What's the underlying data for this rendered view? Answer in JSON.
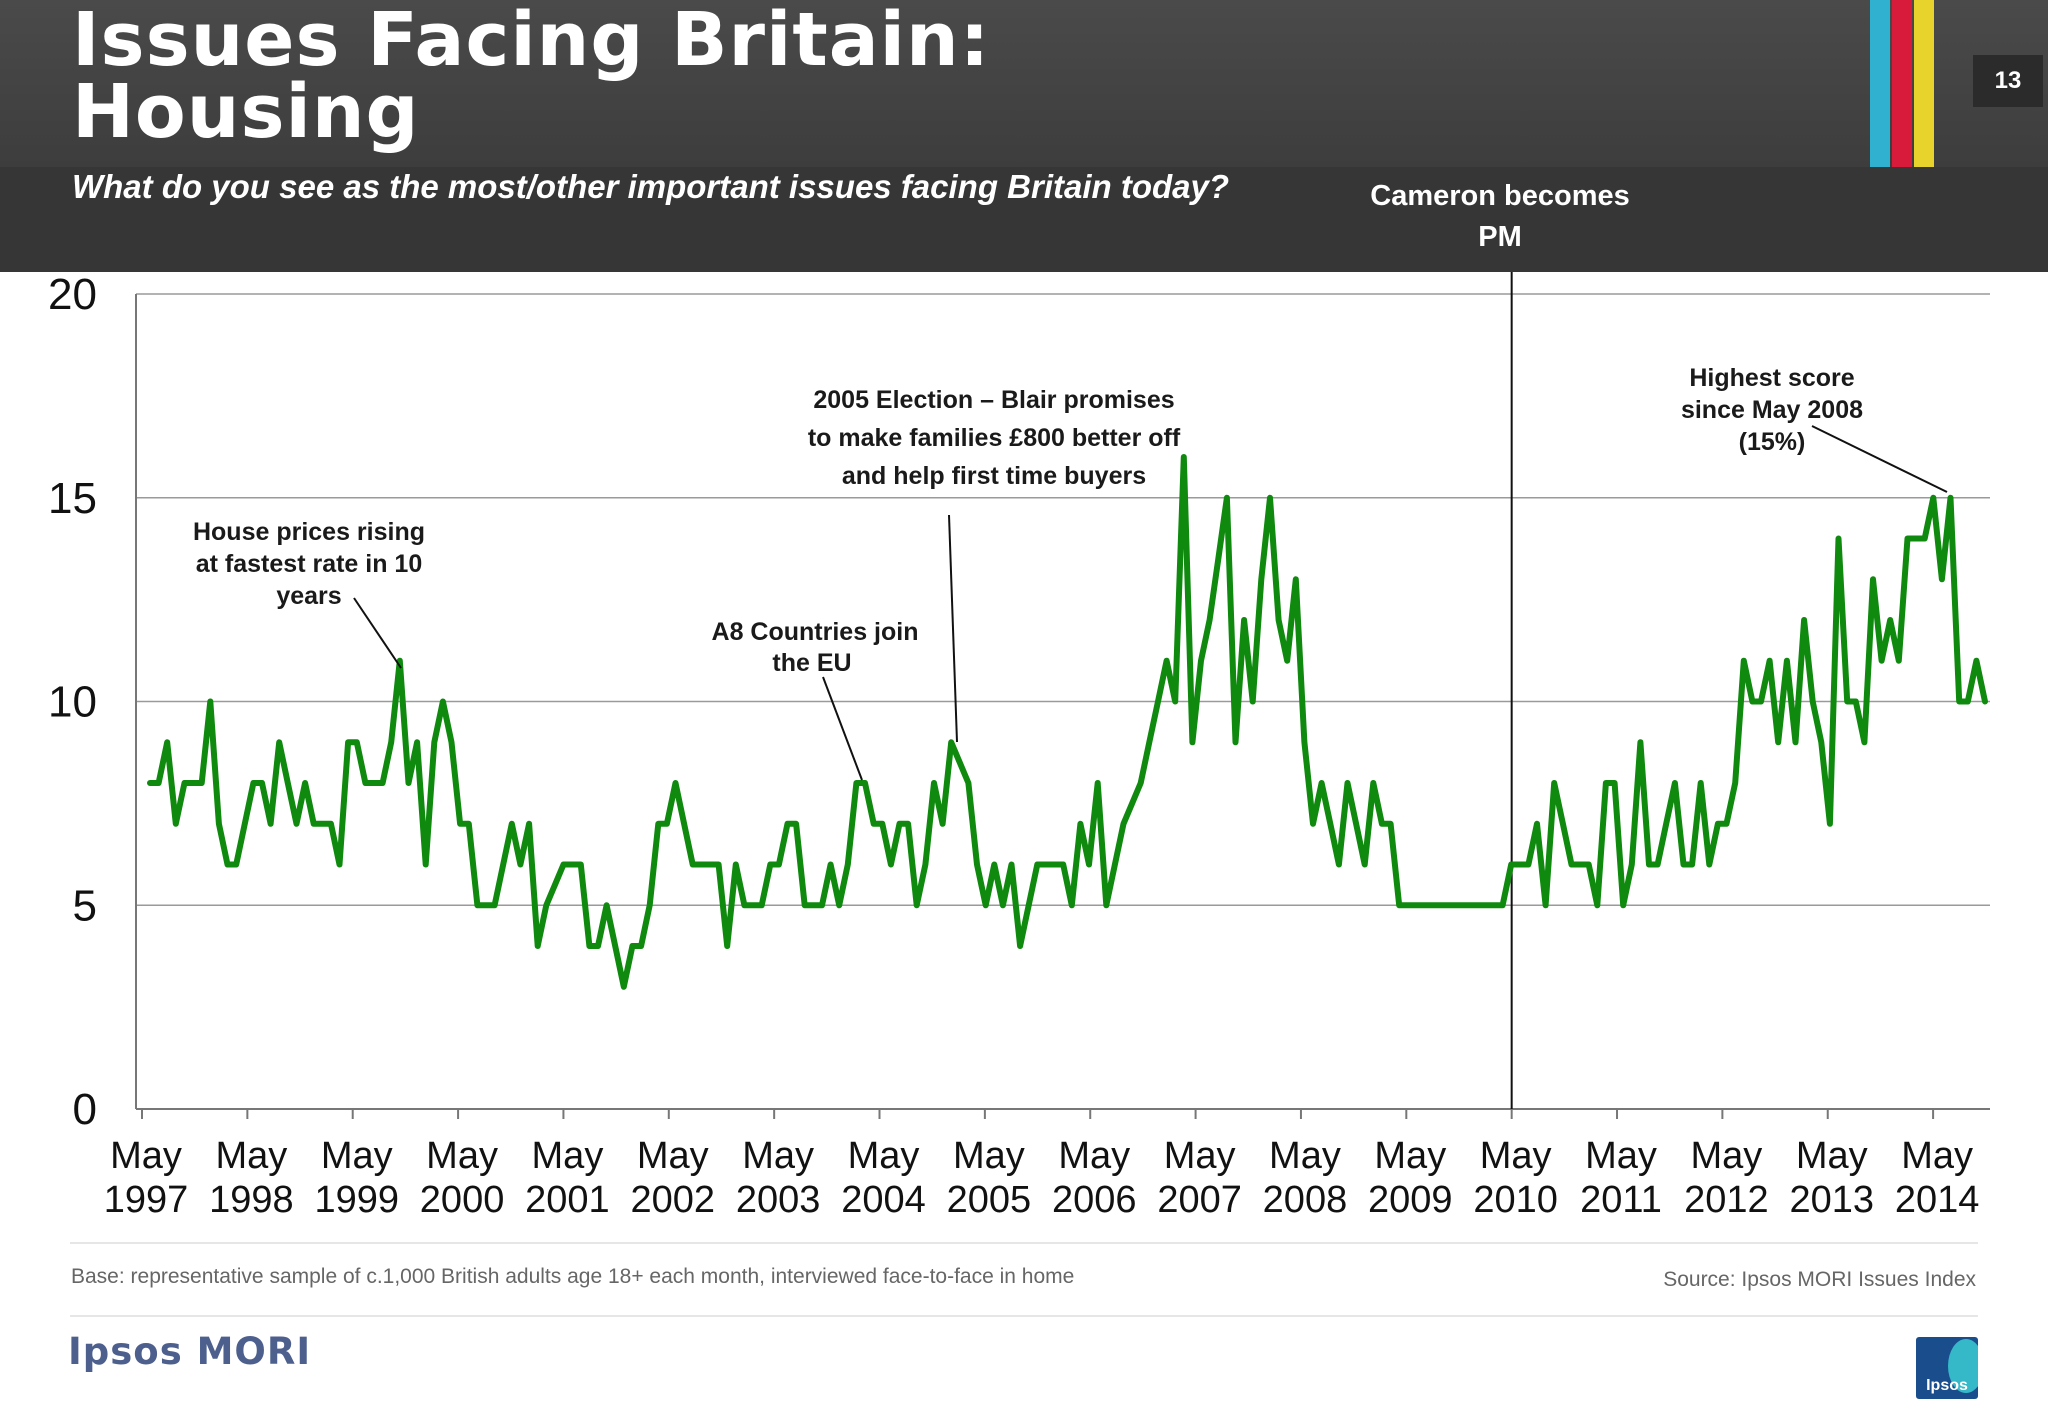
{
  "header": {
    "title_line1": "Issues Facing Britain:",
    "title_line2": "Housing",
    "subtitle": "What do you see as the most/other important issues facing Britain today?",
    "page_number": "13",
    "stripe_colors": [
      "#2fb1cf",
      "#d81b3a",
      "#e8d22c"
    ]
  },
  "annotations": {
    "cameron": [
      "Cameron becomes",
      "PM"
    ],
    "house_prices": [
      "House prices rising",
      "at fastest rate in 10",
      "years"
    ],
    "a8": [
      "A8 Countries join",
      "the EU"
    ],
    "election": [
      "2005 Election – Blair promises",
      "to make families £800 better off",
      "and help first time buyers"
    ],
    "highest": [
      "Highest score",
      "since May 2008",
      "(15%)"
    ]
  },
  "chart_data": {
    "type": "line",
    "title": "",
    "xlabel": "",
    "ylabel": "",
    "ylim": [
      0,
      20
    ],
    "yticks": [
      0,
      5,
      10,
      15,
      20
    ],
    "grid": true,
    "line_color": "#0f8a0f",
    "x_start": "1997-05",
    "x_end": "2014-10",
    "x_tick_labels": [
      [
        "May",
        "1997"
      ],
      [
        "May",
        "1998"
      ],
      [
        "May",
        "1999"
      ],
      [
        "May",
        "2000"
      ],
      [
        "May",
        "2001"
      ],
      [
        "May",
        "2002"
      ],
      [
        "May",
        "2003"
      ],
      [
        "May",
        "2004"
      ],
      [
        "May",
        "2005"
      ],
      [
        "May",
        "2006"
      ],
      [
        "May",
        "2007"
      ],
      [
        "May",
        "2008"
      ],
      [
        "May",
        "2009"
      ],
      [
        "May",
        "2010"
      ],
      [
        "May",
        "2011"
      ],
      [
        "May",
        "2012"
      ],
      [
        "May",
        "2013"
      ],
      [
        "May",
        "2014"
      ]
    ],
    "events": [
      {
        "label": "Cameron becomes PM",
        "x": "2010-05"
      }
    ],
    "series": [
      {
        "values": [
          8,
          8,
          9,
          7,
          8,
          8,
          8,
          10,
          7,
          6,
          6,
          7,
          8,
          8,
          7,
          9,
          8,
          7,
          8,
          7,
          7,
          7,
          6,
          9,
          9,
          8,
          8,
          8,
          9,
          11,
          8,
          9,
          6,
          9,
          10,
          9,
          7,
          7,
          5,
          5,
          5,
          6,
          7,
          6,
          7,
          4,
          5,
          5.5,
          6,
          6,
          6,
          4,
          4,
          5,
          4,
          3,
          4,
          4,
          5,
          7,
          7,
          8,
          7,
          6,
          6,
          6,
          6,
          4,
          6,
          5,
          5,
          5,
          6,
          6,
          7,
          7,
          5,
          5,
          5,
          6,
          5,
          6,
          8,
          8,
          7,
          7,
          6,
          7,
          7,
          5,
          6,
          8,
          7,
          9,
          8.5,
          8,
          6,
          5,
          6,
          5,
          6,
          4,
          5,
          6,
          6,
          6,
          6,
          5,
          7,
          6,
          8,
          5,
          6,
          7,
          7.5,
          8,
          9,
          10,
          11,
          10,
          16,
          9,
          11,
          12,
          13.5,
          15,
          9,
          12,
          10,
          13,
          15,
          12,
          11,
          13,
          9,
          7,
          8,
          7,
          6,
          8,
          7,
          6,
          8,
          7,
          7,
          5,
          5,
          5,
          5,
          5,
          5,
          5,
          5,
          5,
          5,
          5,
          5,
          5,
          6,
          6,
          6,
          7,
          5,
          8,
          7,
          6,
          6,
          6,
          5,
          8,
          8,
          5,
          6,
          9,
          6,
          6,
          7,
          8,
          6,
          6,
          8,
          6,
          7,
          7,
          8,
          11,
          10,
          10,
          11,
          9,
          11,
          9,
          12,
          10,
          9,
          7,
          14,
          10,
          10,
          9,
          13,
          11,
          12,
          11,
          14,
          14,
          14,
          15,
          13,
          15,
          10,
          10,
          11,
          10
        ]
      }
    ]
  },
  "footer": {
    "base": "Base: representative sample of c.1,000 British adults age 18+ each month, interviewed face-to-face in home",
    "source": "Source: Ipsos MORI Issues Index",
    "logo_text": "Ipsos MORI",
    "badge_text": "Ipsos"
  }
}
